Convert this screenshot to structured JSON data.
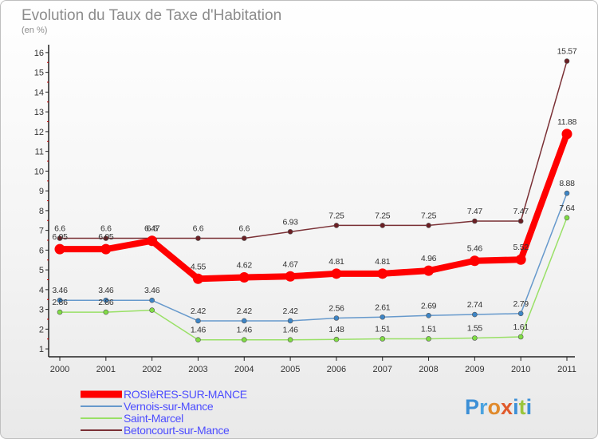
{
  "chart_data": {
    "type": "line",
    "title": "Evolution du Taux de Taxe d'Habitation",
    "subtitle": "(en %)",
    "x": [
      "2000",
      "2001",
      "2002",
      "2003",
      "2004",
      "2005",
      "2006",
      "2007",
      "2008",
      "2009",
      "2010",
      "2011"
    ],
    "y_ticks": [
      "1",
      "2",
      "3",
      "4",
      "5",
      "6",
      "7",
      "8",
      "9",
      "10",
      "11",
      "12",
      "13",
      "14",
      "15",
      "16"
    ],
    "ylim": [
      0.6,
      16.4
    ],
    "grid": false,
    "legend_position": "bottom-left",
    "series": [
      {
        "name": "ROSIèRES-SUR-MANCE",
        "color": "#ff0000",
        "values": [
          6.05,
          6.05,
          6.47,
          4.55,
          4.62,
          4.67,
          4.81,
          4.81,
          4.96,
          5.46,
          5.52,
          11.88
        ],
        "labels": [
          "6.05",
          "6.05",
          "6.47",
          "4.55",
          "4.62",
          "4.67",
          "4.81",
          "4.81",
          "4.96",
          "5.46",
          "5.52",
          "11.88"
        ]
      },
      {
        "name": "Vernois-sur-Mance",
        "color": "#6699cc",
        "marker_color": "#3d85c6",
        "values": [
          3.46,
          3.46,
          3.46,
          2.42,
          2.42,
          2.42,
          2.56,
          2.61,
          2.69,
          2.74,
          2.79,
          8.88
        ],
        "labels": [
          "3.46",
          "3.46",
          "3.46",
          "2.42",
          "2.42",
          "2.42",
          "2.56",
          "2.61",
          "2.69",
          "2.74",
          "2.79",
          "8.88"
        ]
      },
      {
        "name": "Saint-Marcel",
        "color": "#99e066",
        "marker_color": "#80dd44",
        "values": [
          2.86,
          2.86,
          2.96,
          1.46,
          1.46,
          1.46,
          1.48,
          1.51,
          1.51,
          1.55,
          1.61,
          7.64
        ],
        "labels": [
          "2.86",
          "2.86",
          "",
          "1.46",
          "1.46",
          "1.46",
          "1.48",
          "1.51",
          "1.51",
          "1.55",
          "1.61",
          "7.64"
        ]
      },
      {
        "name": "Betoncourt-sur-Mance",
        "color": "#7a3035",
        "marker_color": "#6b1f24",
        "values": [
          6.6,
          6.6,
          6.6,
          6.6,
          6.6,
          6.93,
          7.25,
          7.25,
          7.25,
          7.47,
          7.47,
          15.57
        ],
        "labels": [
          "6.6",
          "6.6",
          "6.6",
          "6.6",
          "6.6",
          "6.93",
          "7.25",
          "7.25",
          "7.25",
          "7.47",
          "7.47",
          "15.57"
        ]
      }
    ]
  },
  "logo": {
    "text": "Proxiti"
  }
}
